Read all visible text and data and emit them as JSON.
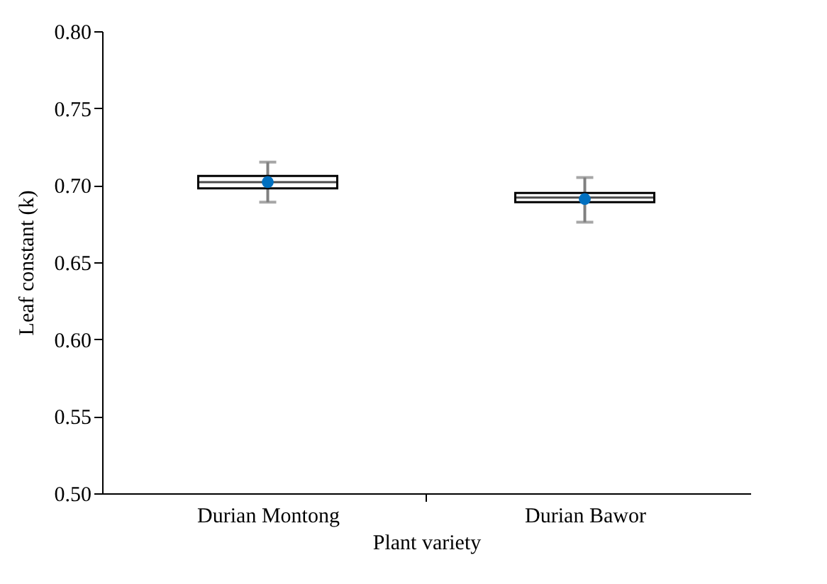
{
  "chart_data": {
    "type": "box",
    "xlabel": "Plant variety",
    "ylabel": "Leaf constant (k)",
    "categories": [
      "Durian Montong",
      "Durian Bawor"
    ],
    "boxes": [
      {
        "low": 0.689,
        "q1": 0.698,
        "median": 0.702,
        "q3": 0.706,
        "high": 0.715
      },
      {
        "low": 0.676,
        "q1": 0.689,
        "median": 0.692,
        "q3": 0.695,
        "high": 0.705
      }
    ],
    "series": [
      {
        "type": "scatter",
        "x": [
          "Durian Montong",
          "Durian Bawor"
        ],
        "values": [
          0.702,
          0.691
        ],
        "color": "#0070c0",
        "marker": "circle"
      }
    ],
    "ylim": [
      0.5,
      0.8
    ],
    "yticks": [
      {
        "value": 0.5,
        "label": "0.50"
      },
      0.55,
      {
        "value": 0.6,
        "label": "0.60"
      },
      0.65,
      {
        "value": 0.7,
        "label": "0.70"
      },
      0.75,
      {
        "value": 0.8,
        "label": "0.80"
      }
    ],
    "grid": false
  }
}
